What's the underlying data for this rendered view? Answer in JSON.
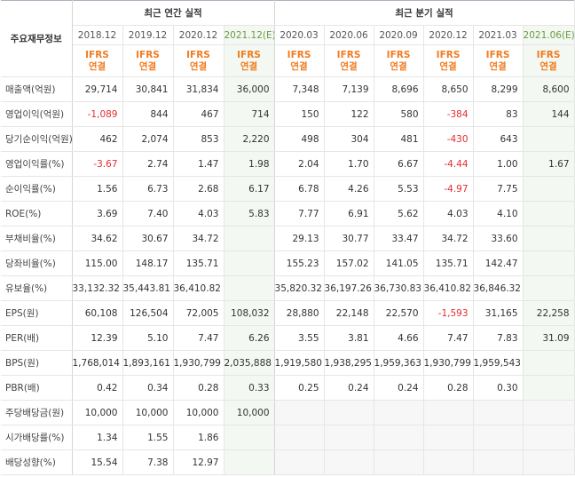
{
  "corner_label": "주요재무정보",
  "group_annual": "최근 연간 실적",
  "group_quarterly": "최근 분기 실적",
  "ifrs_line1": "IFRS",
  "ifrs_line2": "연결",
  "annual_periods": [
    "2018.12",
    "2019.12",
    "2020.12",
    "2021.12(E)"
  ],
  "quarter_periods": [
    "2020.03",
    "2020.06",
    "2020.09",
    "2020.12",
    "2021.03",
    "2021.06(E)"
  ],
  "rows": [
    {
      "label": "매출액(억원)",
      "annual": [
        "29,714",
        "30,841",
        "31,834",
        "36,000"
      ],
      "quarter": [
        "7,348",
        "7,139",
        "8,696",
        "8,650",
        "8,299",
        "8,600"
      ]
    },
    {
      "label": "영업이익(억원)",
      "annual": [
        "-1,089",
        "844",
        "467",
        "714"
      ],
      "quarter": [
        "150",
        "122",
        "580",
        "-384",
        "83",
        "144"
      ]
    },
    {
      "label": "당기순이익(억원)",
      "annual": [
        "462",
        "2,074",
        "853",
        "2,220"
      ],
      "quarter": [
        "498",
        "304",
        "481",
        "-430",
        "643",
        ""
      ]
    },
    {
      "label": "영업이익률(%)",
      "annual": [
        "-3.67",
        "2.74",
        "1.47",
        "1.98"
      ],
      "quarter": [
        "2.04",
        "1.70",
        "6.67",
        "-4.44",
        "1.00",
        "1.67"
      ]
    },
    {
      "label": "순이익률(%)",
      "annual": [
        "1.56",
        "6.73",
        "2.68",
        "6.17"
      ],
      "quarter": [
        "6.78",
        "4.26",
        "5.53",
        "-4.97",
        "7.75",
        ""
      ]
    },
    {
      "label": "ROE(%)",
      "annual": [
        "3.69",
        "7.40",
        "4.03",
        "5.83"
      ],
      "quarter": [
        "7.77",
        "6.91",
        "5.62",
        "4.03",
        "4.10",
        ""
      ]
    },
    {
      "label": "부채비율(%)",
      "annual": [
        "34.62",
        "30.67",
        "34.72",
        ""
      ],
      "quarter": [
        "29.13",
        "30.77",
        "33.47",
        "34.72",
        "33.60",
        ""
      ]
    },
    {
      "label": "당좌비율(%)",
      "annual": [
        "115.00",
        "148.17",
        "135.71",
        ""
      ],
      "quarter": [
        "155.23",
        "157.02",
        "141.05",
        "135.71",
        "142.47",
        ""
      ]
    },
    {
      "label": "유보율(%)",
      "annual": [
        "33,132.32",
        "35,443.81",
        "36,410.82",
        ""
      ],
      "quarter": [
        "35,820.32",
        "36,197.26",
        "36,730.83",
        "36,410.82",
        "36,846.32",
        ""
      ]
    },
    {
      "label": "EPS(원)",
      "annual": [
        "60,108",
        "126,504",
        "72,005",
        "108,032"
      ],
      "quarter": [
        "28,880",
        "22,148",
        "22,570",
        "-1,593",
        "31,165",
        "22,258"
      ]
    },
    {
      "label": "PER(배)",
      "annual": [
        "12.39",
        "5.10",
        "7.47",
        "6.26"
      ],
      "quarter": [
        "3.55",
        "3.81",
        "4.66",
        "7.47",
        "7.83",
        "31.09"
      ]
    },
    {
      "label": "BPS(원)",
      "annual": [
        "1,768,014",
        "1,893,161",
        "1,930,799",
        "2,035,888"
      ],
      "quarter": [
        "1,919,580",
        "1,938,295",
        "1,959,363",
        "1,930,799",
        "1,959,543",
        ""
      ]
    },
    {
      "label": "PBR(배)",
      "annual": [
        "0.42",
        "0.34",
        "0.28",
        "0.33"
      ],
      "quarter": [
        "0.25",
        "0.24",
        "0.24",
        "0.28",
        "0.30",
        ""
      ]
    },
    {
      "label": "주당배당금(원)",
      "annual": [
        "10,000",
        "10,000",
        "10,000",
        "10,000"
      ],
      "quarter": [
        "",
        "",
        "",
        "",
        "",
        ""
      ]
    },
    {
      "label": "시가배당률(%)",
      "annual": [
        "1.34",
        "1.55",
        "1.86",
        ""
      ],
      "quarter": [
        "",
        "",
        "",
        "",
        "",
        ""
      ]
    },
    {
      "label": "배당성향(%)",
      "annual": [
        "15.54",
        "7.38",
        "12.97",
        ""
      ],
      "quarter": [
        "",
        "",
        "",
        "",
        "",
        ""
      ]
    }
  ],
  "group_starts": [
    0,
    3,
    6,
    9,
    13
  ],
  "colors": {
    "ifrs": "#f27b20",
    "estimate_header": "#6b9a3f",
    "estimate_bg": "#f3f8f2",
    "negative": "#e52b2b"
  }
}
